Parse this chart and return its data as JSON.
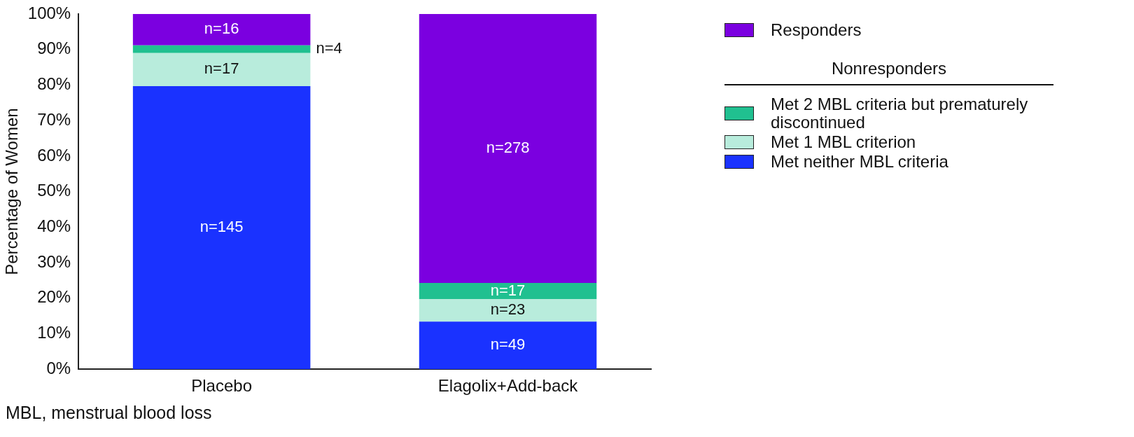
{
  "chart_data": {
    "type": "bar",
    "stacked": true,
    "ylabel": "Percentage of Women",
    "categories": [
      "Placebo",
      "Elagolix+Add-back"
    ],
    "series": [
      {
        "name": "Met neither MBL criteria",
        "color": "#1a32ff",
        "values": [
          79.7,
          13.4
        ]
      },
      {
        "name": "Met 1 MBL criterion",
        "color": "#b8ecdc",
        "values": [
          9.3,
          6.3
        ]
      },
      {
        "name": "Met 2 MBL criteria but prematurely discontinued",
        "color": "#20c090",
        "values": [
          2.2,
          4.6
        ]
      },
      {
        "name": "Responders",
        "color": "#7b00e0",
        "values": [
          8.8,
          75.7
        ]
      }
    ],
    "ylim": [
      0,
      100
    ],
    "yticks": [
      {
        "value": 0,
        "label": "0%"
      },
      {
        "value": 10,
        "label": "10%"
      },
      {
        "value": 20,
        "label": "20%"
      },
      {
        "value": 30,
        "label": "30%"
      },
      {
        "value": 40,
        "label": "40%"
      },
      {
        "value": 50,
        "label": "50%"
      },
      {
        "value": 60,
        "label": "60%"
      },
      {
        "value": 70,
        "label": "70%"
      },
      {
        "value": 80,
        "label": "80%"
      },
      {
        "value": 90,
        "label": "90%"
      },
      {
        "value": 100,
        "label": "100%"
      }
    ],
    "grid": false,
    "legend": "right",
    "annotations": [
      "Nonresponders",
      "MBL, menstrual blood loss",
      "n=145",
      "n=49",
      "n=17",
      "n=23",
      "n=4",
      "n=17",
      "n=16",
      "n=278"
    ]
  }
}
